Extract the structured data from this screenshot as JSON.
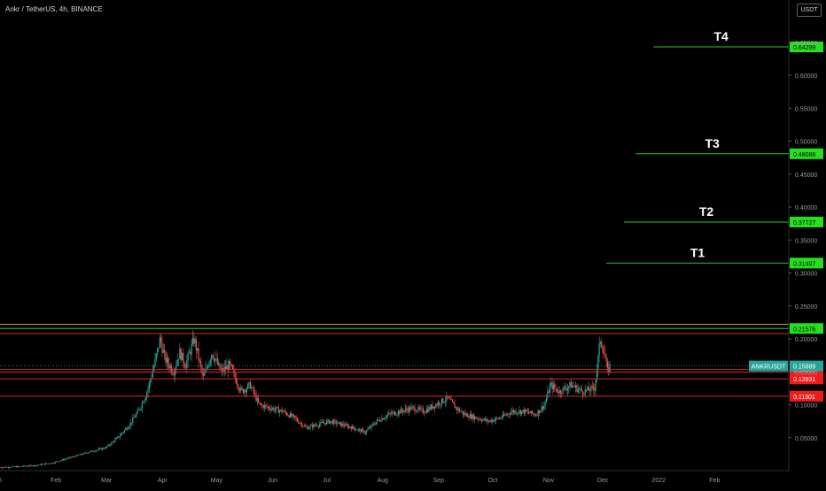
{
  "header": {
    "title": "Ankr / TetherUS, 4h, BINANCE",
    "currency": "USDT"
  },
  "colors": {
    "background": "#000000",
    "axis_text": "#9598a1",
    "green_line": "#2fbf2f",
    "green_label": "#26e020",
    "red_line": "#d62b2b",
    "red_label": "#f01c1c",
    "orange_line": "#e8a23a",
    "teal_label": "#26a69a",
    "candle_up": "#26a69a",
    "candle_down": "#ef5350"
  },
  "chart_data": {
    "type": "candlestick",
    "symbol": "ANKRUSDT",
    "last_price": "0.15889",
    "ylim": [
      0,
      0.69
    ],
    "y_ticks": [
      "0.05000",
      "0.10000",
      "0.15000",
      "0.20000",
      "0.25000",
      "0.30000",
      "0.35000",
      "0.40000",
      "0.45000",
      "0.50000",
      "0.55000",
      "0.60000",
      "0.65000"
    ],
    "x_ticks": [
      {
        "label": "5",
        "t": 0
      },
      {
        "label": "Feb",
        "t": 0.95
      },
      {
        "label": "Mar",
        "t": 1.81
      },
      {
        "label": "Apr",
        "t": 2.76
      },
      {
        "label": "May",
        "t": 3.68
      },
      {
        "label": "Jun",
        "t": 4.63
      },
      {
        "label": "Jul",
        "t": 5.55
      },
      {
        "label": "Aug",
        "t": 6.5
      },
      {
        "label": "Sep",
        "t": 7.45
      },
      {
        "label": "Oct",
        "t": 8.37
      },
      {
        "label": "Nov",
        "t": 9.32
      },
      {
        "label": "Dec",
        "t": 10.24
      },
      {
        "label": "2022",
        "t": 11.19
      },
      {
        "label": "Feb",
        "t": 12.14
      }
    ],
    "xlim": [
      0,
      13.4
    ],
    "price_path": [
      [
        0,
        0.005
      ],
      [
        0.3,
        0.006
      ],
      [
        0.6,
        0.008
      ],
      [
        0.9,
        0.012
      ],
      [
        1.2,
        0.02
      ],
      [
        1.5,
        0.028
      ],
      [
        1.8,
        0.035
      ],
      [
        2.0,
        0.05
      ],
      [
        2.2,
        0.07
      ],
      [
        2.35,
        0.09
      ],
      [
        2.5,
        0.12
      ],
      [
        2.62,
        0.16
      ],
      [
        2.72,
        0.2
      ],
      [
        2.8,
        0.17
      ],
      [
        2.95,
        0.15
      ],
      [
        3.05,
        0.18
      ],
      [
        3.15,
        0.16
      ],
      [
        3.3,
        0.2
      ],
      [
        3.45,
        0.14
      ],
      [
        3.6,
        0.18
      ],
      [
        3.75,
        0.15
      ],
      [
        3.9,
        0.16
      ],
      [
        4.1,
        0.12
      ],
      [
        4.25,
        0.13
      ],
      [
        4.4,
        0.1
      ],
      [
        4.6,
        0.095
      ],
      [
        4.8,
        0.09
      ],
      [
        5.0,
        0.08
      ],
      [
        5.2,
        0.065
      ],
      [
        5.4,
        0.07
      ],
      [
        5.6,
        0.075
      ],
      [
        5.8,
        0.07
      ],
      [
        6.0,
        0.065
      ],
      [
        6.2,
        0.058
      ],
      [
        6.4,
        0.075
      ],
      [
        6.6,
        0.085
      ],
      [
        6.8,
        0.09
      ],
      [
        7.0,
        0.095
      ],
      [
        7.2,
        0.09
      ],
      [
        7.4,
        0.1
      ],
      [
        7.6,
        0.11
      ],
      [
        7.75,
        0.095
      ],
      [
        7.9,
        0.085
      ],
      [
        8.1,
        0.08
      ],
      [
        8.3,
        0.075
      ],
      [
        8.5,
        0.08
      ],
      [
        8.7,
        0.09
      ],
      [
        8.9,
        0.09
      ],
      [
        9.1,
        0.085
      ],
      [
        9.25,
        0.1
      ],
      [
        9.35,
        0.13
      ],
      [
        9.5,
        0.12
      ],
      [
        9.7,
        0.13
      ],
      [
        9.9,
        0.12
      ],
      [
        10.1,
        0.125
      ],
      [
        10.2,
        0.2
      ],
      [
        10.26,
        0.18
      ],
      [
        10.32,
        0.15
      ],
      [
        10.36,
        0.159
      ]
    ],
    "targets": [
      {
        "label": "T4",
        "value": 0.64299,
        "price_label": "0.64299",
        "t_start": 11.1
      },
      {
        "label": "T3",
        "value": 0.48086,
        "price_label": "0.48086",
        "t_start": 10.8
      },
      {
        "label": "T2",
        "value": 0.37727,
        "price_label": "0.37727",
        "t_start": 10.6
      },
      {
        "label": "T1",
        "value": 0.31497,
        "price_label": "0.31497",
        "t_start": 10.3
      }
    ],
    "support_levels": [
      {
        "value": 0.15359,
        "price_label": "0.15359"
      },
      {
        "value": 0.13931,
        "price_label": "0.13931"
      },
      {
        "value": 0.11301,
        "price_label": "0.11301"
      }
    ],
    "resistance_levels": [
      {
        "value": 0.21576,
        "price_label": "0.21576",
        "color": "green"
      },
      {
        "value": 0.222,
        "color": "orange"
      },
      {
        "value": 0.208,
        "color": "red"
      },
      {
        "value": 0.1495,
        "color": "red"
      }
    ]
  }
}
